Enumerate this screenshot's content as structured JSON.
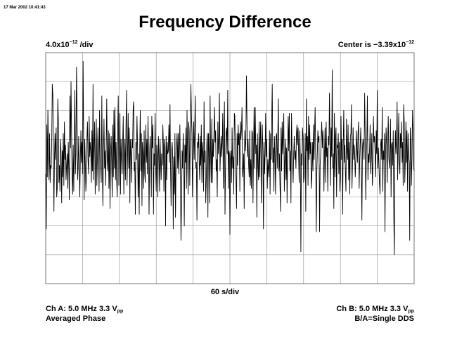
{
  "timestamp": "17 Mar 2002 10:41:43",
  "title": "Frequency Difference",
  "y_scale": {
    "prefix": "4.0x10",
    "exp": "−12",
    "suffix": " /div"
  },
  "center": {
    "prefix": "Center is −3.39x10",
    "exp": "−12"
  },
  "x_scale": "60 s/div",
  "channel_a": {
    "prefix": "Ch A: 5.0 MHz 3.3 V",
    "sub": "pp"
  },
  "channel_b": {
    "prefix": "Ch B: 5.0 MHz 3.3 V",
    "sub": "pp"
  },
  "mode": "Averaged Phase",
  "ratio": "B/A=Single DDS",
  "colors": {
    "trace": "#000000",
    "grid": "#8c8c8c",
    "frame": "#555555"
  },
  "chart_data": {
    "type": "line",
    "title": "Frequency Difference",
    "xlabel": "60 s/div",
    "ylabel": "4.0x10⁻¹² /div",
    "grid": true,
    "x_unit": "s",
    "y_unit": "divisions from center (1 div = 4.0x10⁻¹²)",
    "xlim": [
      0,
      600
    ],
    "ylim": [
      -4,
      4
    ],
    "series": [
      {
        "values": [
          -0.2,
          -2.1,
          1.5,
          -0.3,
          2.0,
          0.7,
          -0.4,
          1.2,
          -0.5,
          0.1,
          0.0,
          1.0,
          2.9,
          2.5,
          0.4,
          -1.5,
          0.4,
          1.2,
          0.3,
          1.4,
          -1.0,
          -0.7,
          2.4,
          1.6,
          -0.5,
          0.1,
          -0.8,
          1.0,
          0.5,
          -1.2,
          0.6,
          -0.3,
          1.2,
          -0.6,
          1.6,
          0.3,
          0.8,
          -0.4,
          0.1,
          0.5,
          -0.7,
          0.9,
          0.1,
          -1.1,
          2.5,
          0.7,
          3.0,
          1.2,
          -0.3,
          -0.9,
          0.8,
          -0.8,
          1.0,
          2.7,
          -0.2,
          0.5,
          3.5,
          1.9,
          -0.4,
          0.0,
          1.1,
          0.1,
          -1.0,
          0.4,
          1.3,
          0.2,
          0.9,
          -0.2,
          3.7,
          0.9,
          -1.1,
          1.0,
          0.2,
          -0.8,
          -0.3,
          1.1,
          1.6,
          0.3,
          -0.2,
          1.8,
          0.4,
          0.9,
          0.6,
          -0.5,
          1.3,
          -0.1,
          2.9,
          -0.4,
          0.8,
          1.6,
          -0.9,
          0.5,
          1.7,
          -0.6,
          0.3,
          1.4,
          0.7,
          -0.8,
          2.0,
          0.4,
          0.0,
          -0.5,
          2.5,
          0.0,
          -1.3,
          0.6,
          1.7,
          0.0,
          0.6,
          -0.6,
          0.6,
          2.4,
          0.3,
          -0.1,
          1.3,
          -0.7,
          1.2,
          -1.4,
          0.6,
          1.1,
          0.1,
          -1.0,
          1.5,
          -0.3,
          2.0,
          0.0,
          2.1,
          -0.4,
          0.9,
          -0.4,
          -1.0,
          1.5,
          2.5,
          -0.6,
          0.8,
          1.9,
          -0.9,
          1.0,
          0.4,
          -0.2,
          0.9,
          1.8,
          -0.9,
          0.3,
          1.0,
          -0.4,
          1.5,
          2.7,
          -0.6,
          0.6,
          1.9,
          0.0,
          1.4,
          -1.2,
          1.0,
          0.5,
          -0.5,
          1.0,
          0.7,
          2.1,
          2.3,
          -0.1,
          0.2,
          -1.6,
          0.9,
          0.3,
          1.8,
          0.8,
          -1.0,
          0.5,
          -1.6,
          0.7,
          2.0,
          -0.1,
          1.2,
          -1.3,
          0.9,
          0.5,
          -0.7,
          1.3,
          -0.2,
          -0.5,
          1.5,
          0.2,
          1.0,
          -0.2,
          1.8,
          0.3,
          -1.6,
          0.5,
          1.1,
          0.3,
          -1.0,
          1.8,
          0.7,
          1.5,
          -1.6,
          0.5,
          0.1,
          1.9,
          0.0,
          -0.8,
          0.8,
          0.4,
          -1.0,
          1.1,
          0.5,
          -0.8,
          1.0,
          0.2,
          -0.4,
          0.5,
          0.1,
          1.5,
          0.8,
          -0.8,
          1.0,
          0.7,
          -2.0,
          1.1,
          -0.4,
          0.9,
          0.5,
          0.6,
          1.5,
          0.2,
          2.2,
          0.1,
          -1.3,
          0.6,
          0.9,
          0.3,
          -2.1,
          0.4,
          -0.9,
          1.2,
          -1.7,
          0.2,
          0.8,
          1.2,
          0.0,
          1.2,
          -0.2,
          0.6,
          1.5,
          -0.1,
          -2.5,
          -1.2,
          0.6,
          0.0,
          1.2,
          0.6,
          -2.0,
          0.8,
          0.2,
          1.4,
          -0.7,
          2.0,
          0.5,
          -0.9,
          1.6,
          1.3,
          -0.6,
          1.1,
          2.9,
          1.8,
          1.2,
          -1.0,
          0.4,
          1.6,
          0.3,
          1.3,
          2.5,
          0.0,
          0.2,
          -1.8,
          0.9,
          0.7,
          1.2,
          0.3,
          -0.4,
          1.1,
          0.1,
          1.5,
          -0.5,
          0.9,
          0.5,
          -0.8,
          2.3,
          0.2,
          0.6,
          -1.2,
          -0.4,
          0.9,
          1.2,
          -1.7,
          1.2,
          0.6,
          -1.2,
          2.5,
          0.5,
          -0.5,
          1.7,
          -0.5,
          1.0,
          0.4,
          1.2,
          2.1,
          0.9,
          1.3,
          -0.1,
          0.3,
          -1.0,
          1.6,
          0.5,
          1.1,
          2.6,
          -0.1,
          0.6,
          1.1,
          0.4,
          1.0,
          1.9,
          -0.7,
          1.1,
          2.3,
          -1.6,
          -0.1,
          1.2,
          1.4,
          0.5,
          2.7,
          -0.7,
          0.6,
          0.5,
          -2.3,
          0.3,
          0.6,
          -0.5,
          1.4,
          0.0,
          0.4,
          -0.9,
          1.9,
          1.8,
          0.5,
          -0.3,
          -1.4,
          1.2,
          0.1,
          1.5,
          0.8,
          1.2,
          -0.8,
          1.6,
          1.0,
          1.3,
          2.1,
          -0.3,
          0.0,
          0.5,
          -1.4,
          1.3,
          0.6,
          1.0,
          3.2,
          1.8,
          0.4,
          1.0,
          0.1,
          -0.3,
          1.3,
          -0.6,
          0.3,
          -0.7,
          1.3,
          1.2,
          -1.2,
          0.6,
          2.1,
          0.0,
          2.1,
          0.5,
          0.8,
          -1.7,
          1.2,
          0.1,
          -0.4,
          1.6,
          -0.3,
          1.0,
          1.6,
          -1.2,
          0.4,
          1.5,
          0.6,
          -2.1,
          0.9,
          -0.2,
          0.5,
          1.9,
          0.4,
          1.0,
          -0.7,
          0.3,
          0.0,
          -0.3,
          1.3,
          -0.9,
          1.2,
          0.3,
          1.6,
          2.9,
          0.2,
          0.7,
          -0.8,
          1.1,
          0.5,
          -0.9,
          1.1,
          1.2,
          0.0,
          0.9,
          2.4,
          -0.1,
          0.5,
          -0.6,
          -1.5,
          1.4,
          -0.1,
          1.6,
          0.5,
          1.2,
          1.9,
          -0.8,
          0.4,
          1.0,
          -0.4,
          0.7,
          -1.2,
          0.6,
          1.8,
          0.6,
          1.9,
          -0.1,
          0.6,
          -1.2,
          1.9,
          0.5,
          0.2,
          -0.5,
          0.5,
          1.1,
          0.3,
          0.6,
          0.0,
          1.2,
          1.5,
          0.8,
          1.4,
          0.3,
          -0.5,
          1.3,
          0.4,
          -2.9,
          0.5,
          0.1,
          1.4,
          1.1,
          -0.5,
          -0.3,
          0.1,
          1.2,
          -1.5,
          2.4,
          0.6,
          1.1,
          -0.6,
          1.8,
          0.3,
          1.5,
          0.5,
          0.9,
          -0.7,
          -0.3,
          0.9,
          -0.1,
          1.5,
          0.3,
          1.3,
          2.1,
          0.4,
          -2.2,
          -0.1,
          0.6,
          1.3,
          0.9,
          1.1,
          -2.2,
          0.1,
          0.4,
          1.1,
          1.6,
          0.7,
          1.3,
          0.7,
          -0.8,
          0.5,
          1.4,
          -0.5,
          1.6,
          0.4,
          0.7,
          -0.8,
          1.1,
          0.8,
          2.6,
          0.9,
          -0.6,
          1.4,
          0.4,
          3.4,
          0.0,
          0.5,
          -1.4,
          1.9,
          -0.3,
          1.1,
          1.4,
          -1.0,
          0.8,
          0.7,
          1.2,
          -0.2,
          0.9,
          -0.8,
          -0.4,
          1.8,
          0.3,
          1.0,
          -1.6,
          0.7,
          2.0,
          0.2,
          0.8,
          -0.1,
          -0.8,
          1.7,
          0.7,
          0.3,
          1.5,
          -0.4,
          0.9,
          -0.9,
          1.1,
          1.2,
          2.2,
          -0.7,
          0.2,
          1.4,
          0.3,
          0.8,
          0.4,
          -0.3,
          0.4,
          1.3,
          0.6,
          0.2,
          1.2,
          1.6,
          -0.7,
          0.3,
          0.9,
          1.4,
          0.0,
          -1.8,
          0.7,
          1.0,
          0.8,
          0.3,
          2.6,
          1.1,
          -1.1,
          0.4,
          0.9,
          2.5,
          -0.4,
          0.5,
          0.2,
          0.7,
          1.5,
          -0.2,
          0.4,
          1.2,
          -0.6,
          0.1,
          1.8,
          0.9,
          1.1,
          0.5,
          -0.3,
          1.3,
          0.5,
          2.7,
          0.0,
          0.7,
          0.1,
          -0.5,
          -0.9,
          0.8,
          1.0,
          0.3,
          2.1,
          -0.8,
          0.6,
          0.3,
          1.2,
          -2.2,
          0.4,
          1.4,
          0.8,
          -0.5,
          1.1,
          1.8,
          0.4,
          0.0,
          0.5,
          1.7,
          -1.0,
          0.8,
          0.9,
          0.1,
          1.3,
          -1.7,
          -3.0,
          0.3,
          1.3,
          0.5,
          1.0,
          2.3,
          -0.4,
          0.8,
          1.9,
          0.2,
          -0.2,
          1.2,
          0.7,
          1.6,
          0.2,
          0.9,
          -0.6,
          2.2,
          1.6,
          -0.5,
          0.3,
          1.6,
          0.2,
          1.3,
          -0.8,
          1.2,
          0.4,
          0.2,
          -2.5,
          1.4,
          0.9,
          -0.6,
          0.4,
          2.0,
          1.4,
          0.1,
          -0.1
        ]
      }
    ]
  }
}
